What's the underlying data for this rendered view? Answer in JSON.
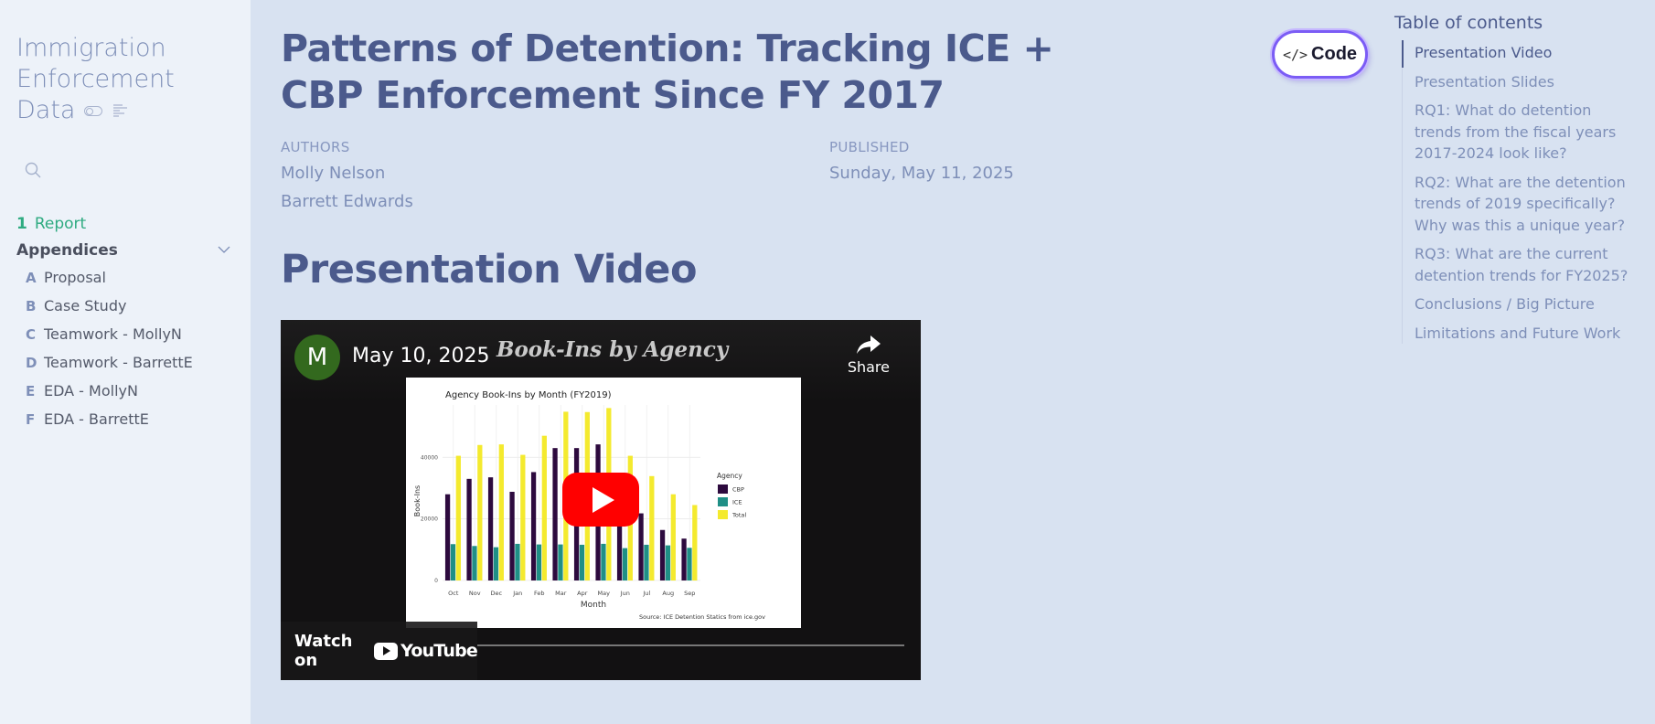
{
  "sidebar": {
    "site_title_line1": "Immigration",
    "site_title_line2": "Enforcement",
    "site_title_line3": "Data",
    "search_icon": "search-icon",
    "nav": {
      "report_number": "1",
      "report_label": "Report",
      "appendices_label": "Appendices",
      "items": [
        {
          "letter": "A",
          "label": "Proposal"
        },
        {
          "letter": "B",
          "label": "Case Study"
        },
        {
          "letter": "C",
          "label": "Teamwork - MollyN"
        },
        {
          "letter": "D",
          "label": "Teamwork - BarrettE"
        },
        {
          "letter": "E",
          "label": "EDA - MollyN"
        },
        {
          "letter": "F",
          "label": "EDA - BarrettE"
        }
      ]
    }
  },
  "header": {
    "title": "Patterns of Detention: Tracking ICE + CBP Enforcement Since FY 2017",
    "authors_label": "AUTHORS",
    "authors": [
      "Molly Nelson",
      "Barrett Edwards"
    ],
    "published_label": "PUBLISHED",
    "published_date": "Sunday, May 11, 2025",
    "code_button_label": "Code"
  },
  "section": {
    "title": "Presentation Video"
  },
  "video": {
    "channel_initial": "M",
    "title": "May 10, 2025",
    "slide_heading": "Book-Ins by Agency",
    "share_label": "Share",
    "watch_on_label": "Watch on",
    "youtube_label": "YouTube"
  },
  "toc": {
    "title": "Table of contents",
    "items": [
      "Presentation Video",
      "Presentation Slides",
      "RQ1: What do detention trends from the fiscal years 2017-2024 look like?",
      "RQ2: What are the detention trends of 2019 specifically? Why was this a unique year?",
      "RQ3: What are the current detention trends for FY2025?",
      "Conclusions / Big Picture",
      "Limitations and Future Work"
    ]
  },
  "chart_data": {
    "type": "bar",
    "title": "Agency Book-Ins by Month (FY2019)",
    "xlabel": "Month",
    "ylabel": "Book-Ins",
    "source": "Source: ICE Detention Statics from ice.gov",
    "categories": [
      "Oct",
      "Nov",
      "Dec",
      "Jan",
      "Feb",
      "Mar",
      "Apr",
      "May",
      "Jun",
      "Jul",
      "Aug",
      "Sep"
    ],
    "yticks": [
      "0",
      "20000",
      "40000"
    ],
    "ylim": [
      0,
      57000
    ],
    "legend_title": "Agency",
    "legend_position": "right",
    "series": [
      {
        "name": "CBP",
        "color": "#2d0a3e",
        "values": [
          28000,
          33000,
          33500,
          28800,
          35200,
          43000,
          43000,
          44200,
          29500,
          21800,
          16400,
          13600
        ]
      },
      {
        "name": "ICE",
        "color": "#1f8f86",
        "values": [
          11800,
          11200,
          10800,
          11900,
          11700,
          11700,
          11600,
          11900,
          10500,
          11600,
          11400,
          10600
        ]
      },
      {
        "name": "Total",
        "color": "#f4ea2e",
        "values": [
          40500,
          44000,
          44200,
          40800,
          47000,
          54800,
          54700,
          56000,
          40500,
          33900,
          28000,
          24500
        ]
      }
    ]
  }
}
